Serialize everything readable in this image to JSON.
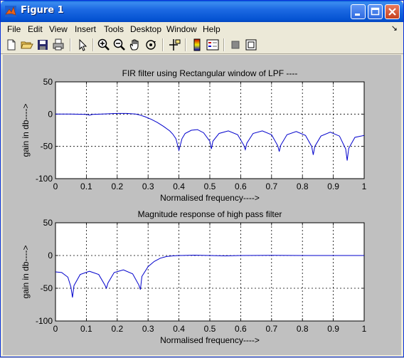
{
  "window": {
    "title": "Figure 1"
  },
  "menu": [
    "File",
    "Edit",
    "View",
    "Insert",
    "Tools",
    "Desktop",
    "Window",
    "Help"
  ],
  "menu_arrow": "↘",
  "toolbar": {
    "icons": [
      "new-file-icon",
      "open-folder-icon",
      "save-icon",
      "print-icon",
      "pointer-icon",
      "zoom-in-icon",
      "zoom-out-icon",
      "pan-hand-icon",
      "rotate-3d-icon",
      "data-cursor-icon",
      "colorbar-icon",
      "legend-icon",
      "hide-plot-tools-icon",
      "show-plot-tools-icon"
    ]
  },
  "colors": {
    "line": "#0000cc",
    "axes_bg": "#ffffff",
    "figure_bg": "#c0c0c0"
  },
  "chart_data": [
    {
      "type": "line",
      "title": "FIR filter using Rectangular window of LPF ----",
      "xlabel": "Normalised frequency---->",
      "ylabel": "gain in db---->",
      "xlim": [
        0,
        1
      ],
      "ylim": [
        -100,
        50
      ],
      "xticks": [
        "0",
        "0.1",
        "0.2",
        "0.3",
        "0.4",
        "0.5",
        "0.6",
        "0.7",
        "0.8",
        "0.9",
        "1"
      ],
      "yticks": [
        "50",
        "0",
        "-50",
        "-100"
      ],
      "grid": true,
      "series": [
        {
          "x": [
            0,
            0.05,
            0.1,
            0.11,
            0.12,
            0.15,
            0.2,
            0.23,
            0.26,
            0.27,
            0.29,
            0.31,
            0.33,
            0.35,
            0.37,
            0.38,
            0.39,
            0.4,
            0.41,
            0.42,
            0.44,
            0.46,
            0.48,
            0.5,
            0.505,
            0.51,
            0.53,
            0.56,
            0.59,
            0.61,
            0.615,
            0.62,
            0.64,
            0.67,
            0.7,
            0.72,
            0.725,
            0.73,
            0.75,
            0.78,
            0.81,
            0.83,
            0.835,
            0.84,
            0.86,
            0.89,
            0.92,
            0.94,
            0.945,
            0.95,
            0.97,
            1.0
          ],
          "y": [
            0,
            0,
            -0.5,
            -1.5,
            -0.5,
            0,
            1,
            1,
            0,
            -1,
            -4,
            -8,
            -13,
            -19,
            -26,
            -31,
            -38,
            -56,
            -38,
            -30,
            -25,
            -24,
            -29,
            -42,
            -54,
            -42,
            -30,
            -26,
            -32,
            -48,
            -55,
            -45,
            -30,
            -26,
            -32,
            -49,
            -58,
            -48,
            -32,
            -27,
            -33,
            -50,
            -63,
            -50,
            -34,
            -28,
            -34,
            -54,
            -72,
            -53,
            -36,
            -33
          ]
        }
      ]
    },
    {
      "type": "line",
      "title": "Magnitude response of high pass filter",
      "xlabel": "Normalised frequency---->",
      "ylabel": "gain in db---->",
      "xlim": [
        0,
        1
      ],
      "ylim": [
        -100,
        50
      ],
      "xticks": [
        "0",
        "0.1",
        "0.2",
        "0.3",
        "0.4",
        "0.5",
        "0.6",
        "0.7",
        "0.8",
        "0.9",
        "1"
      ],
      "yticks": [
        "50",
        "0",
        "-50",
        "-100"
      ],
      "grid": true,
      "series": [
        {
          "x": [
            0,
            0.02,
            0.04,
            0.05,
            0.055,
            0.06,
            0.08,
            0.11,
            0.14,
            0.16,
            0.165,
            0.17,
            0.19,
            0.22,
            0.25,
            0.27,
            0.275,
            0.28,
            0.3,
            0.32,
            0.34,
            0.36,
            0.38,
            0.4,
            0.45,
            0.5,
            0.55,
            0.6,
            0.7,
            0.8,
            0.9,
            1.0
          ],
          "y": [
            -25,
            -26,
            -33,
            -48,
            -64,
            -46,
            -29,
            -24,
            -29,
            -45,
            -50,
            -42,
            -26,
            -22,
            -28,
            -45,
            -52,
            -32,
            -17,
            -9,
            -4,
            -1.5,
            -0.5,
            0,
            0.5,
            0,
            -0.5,
            0,
            0.3,
            0,
            0,
            0
          ]
        }
      ]
    }
  ]
}
